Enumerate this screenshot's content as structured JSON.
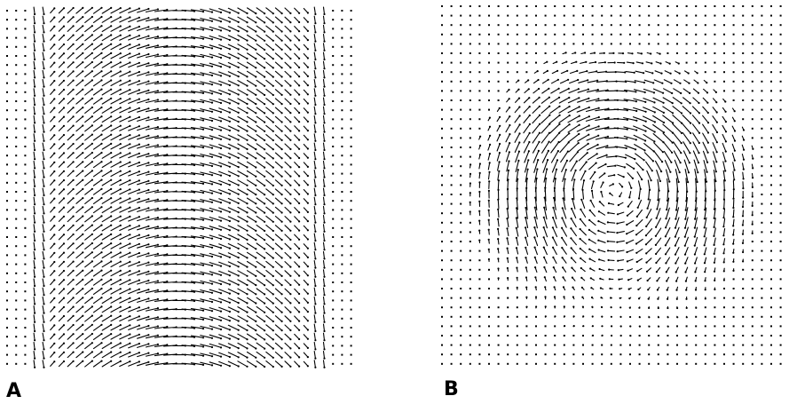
{
  "figure": {
    "panels": [
      {
        "id": "A",
        "label": "A",
        "field": "laminar-shear"
      },
      {
        "id": "B",
        "label": "B",
        "field": "rotating-vortex"
      }
    ],
    "ink_color": "#000000",
    "background": "#ffffff"
  }
}
